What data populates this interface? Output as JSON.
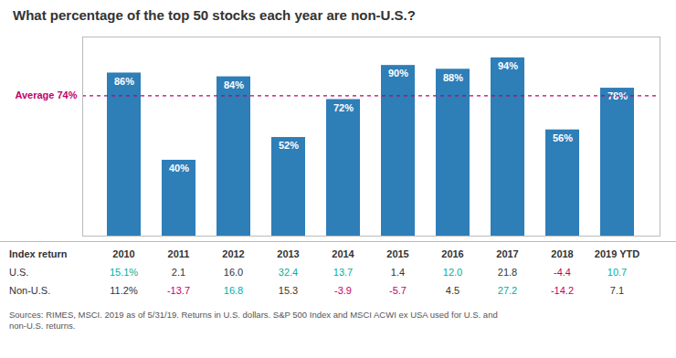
{
  "chart_data": {
    "type": "bar",
    "title": "What percentage of the top 50 stocks each year are non-U.S.?",
    "categories": [
      "2010",
      "2011",
      "2012",
      "2013",
      "2014",
      "2015",
      "2016",
      "2017",
      "2018",
      "2019 YTD"
    ],
    "values": [
      86,
      40,
      84,
      52,
      72,
      90,
      88,
      94,
      56,
      78
    ],
    "value_labels": [
      "86%",
      "40%",
      "84%",
      "52%",
      "72%",
      "90%",
      "88%",
      "94%",
      "56%",
      "78%"
    ],
    "data_labels": true,
    "color": "#2E7EB8",
    "ylim": [
      0,
      105
    ],
    "tick_labels": false,
    "grid": false,
    "reference_lines": [
      {
        "y": 74,
        "label": "Average 74%",
        "color": "#C0006A",
        "line_style": "dashed"
      }
    ],
    "table": {
      "header": "Index return",
      "rows": [
        {
          "name": "U.S.",
          "values": [
            15.1,
            2.1,
            16.0,
            32.4,
            13.7,
            1.4,
            12.0,
            21.8,
            -4.4,
            10.7
          ],
          "value_labels": [
            "15.1%",
            "2.1",
            "16.0",
            "32.4",
            "13.7",
            "1.4",
            "12.0",
            "21.8",
            "-4.4",
            "10.7"
          ],
          "colors": [
            "#00B09B",
            "#333333",
            "#333333",
            "#00B09B",
            "#00B09B",
            "#333333",
            "#00B09B",
            "#333333",
            "#C0006A",
            "#00B09B"
          ]
        },
        {
          "name": "Non-U.S.",
          "values": [
            11.2,
            -13.7,
            16.8,
            15.3,
            -3.9,
            -5.7,
            4.5,
            27.2,
            -14.2,
            7.1
          ],
          "value_labels": [
            "11.2%",
            "-13.7",
            "16.8",
            "15.3",
            "-3.9",
            "-5.7",
            "4.5",
            "27.2",
            "-14.2",
            "7.1"
          ],
          "colors": [
            "#333333",
            "#C0006A",
            "#00B09B",
            "#333333",
            "#C0006A",
            "#C0006A",
            "#333333",
            "#00B09B",
            "#C0006A",
            "#333333"
          ]
        }
      ]
    },
    "source": "Sources: RIMES, MSCI. 2019 as of 5/31/19. Returns in U.S. dollars. S&P 500 Index and MSCI ACWI ex USA used for U.S. and\nnon-U.S. returns."
  }
}
